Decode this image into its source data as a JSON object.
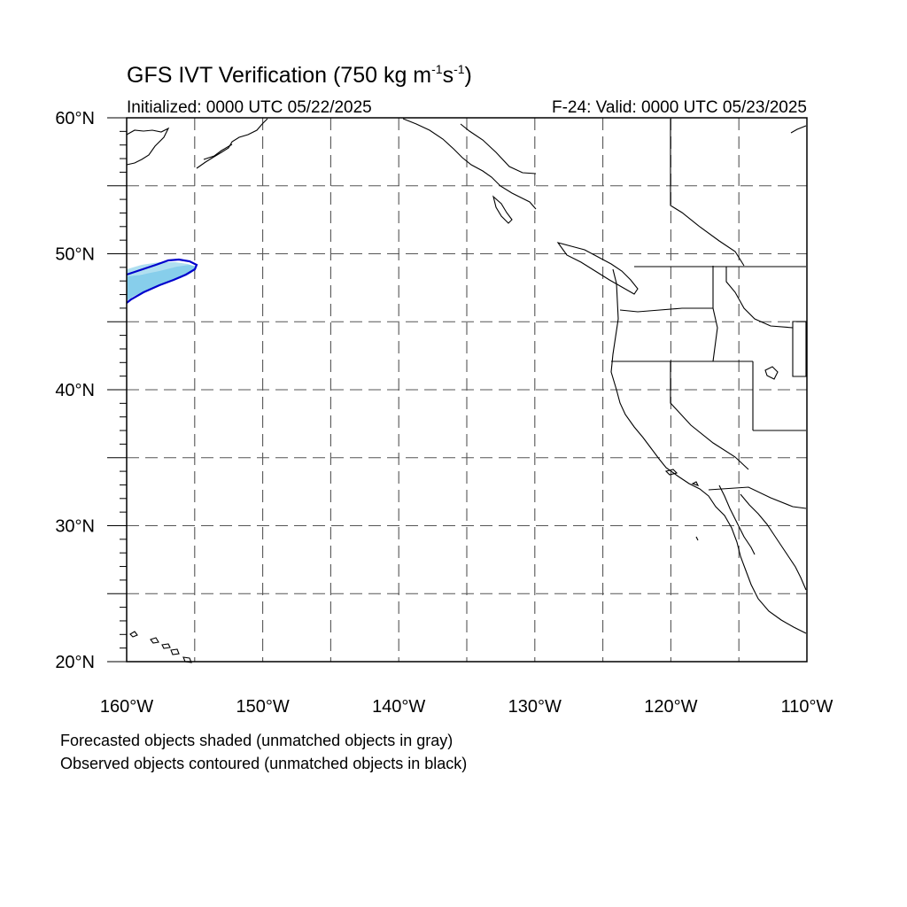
{
  "title": {
    "main": "GFS IVT Verification (750 kg m",
    "exp1": "-1",
    "mid": "s",
    "exp2": "-1",
    "close": ")"
  },
  "subtitle": {
    "initialized": "Initialized: 0000 UTC 05/22/2025",
    "valid": "F-24: Valid: 0000 UTC 05/23/2025"
  },
  "map": {
    "lon_range": [
      -160,
      -110
    ],
    "lat_range": [
      20,
      60
    ],
    "grid": "dashed every 5 degrees",
    "lat_labels": [
      "20°N",
      "30°N",
      "40°N",
      "50°N",
      "60°N"
    ],
    "lon_labels": [
      "160°W",
      "150°W",
      "140°W",
      "130°W",
      "120°W",
      "110°W"
    ],
    "colors": {
      "forecast_shade": "#87ceeb",
      "forecast_shade_light": "#b0dff0",
      "observed_contour": "#0000cd",
      "coastline": "#000000",
      "grid": "#555555"
    }
  },
  "legend": {
    "line1": "Forecasted objects shaded (unmatched objects in gray)",
    "line2": "Observed objects contoured (unmatched objects in black)"
  }
}
